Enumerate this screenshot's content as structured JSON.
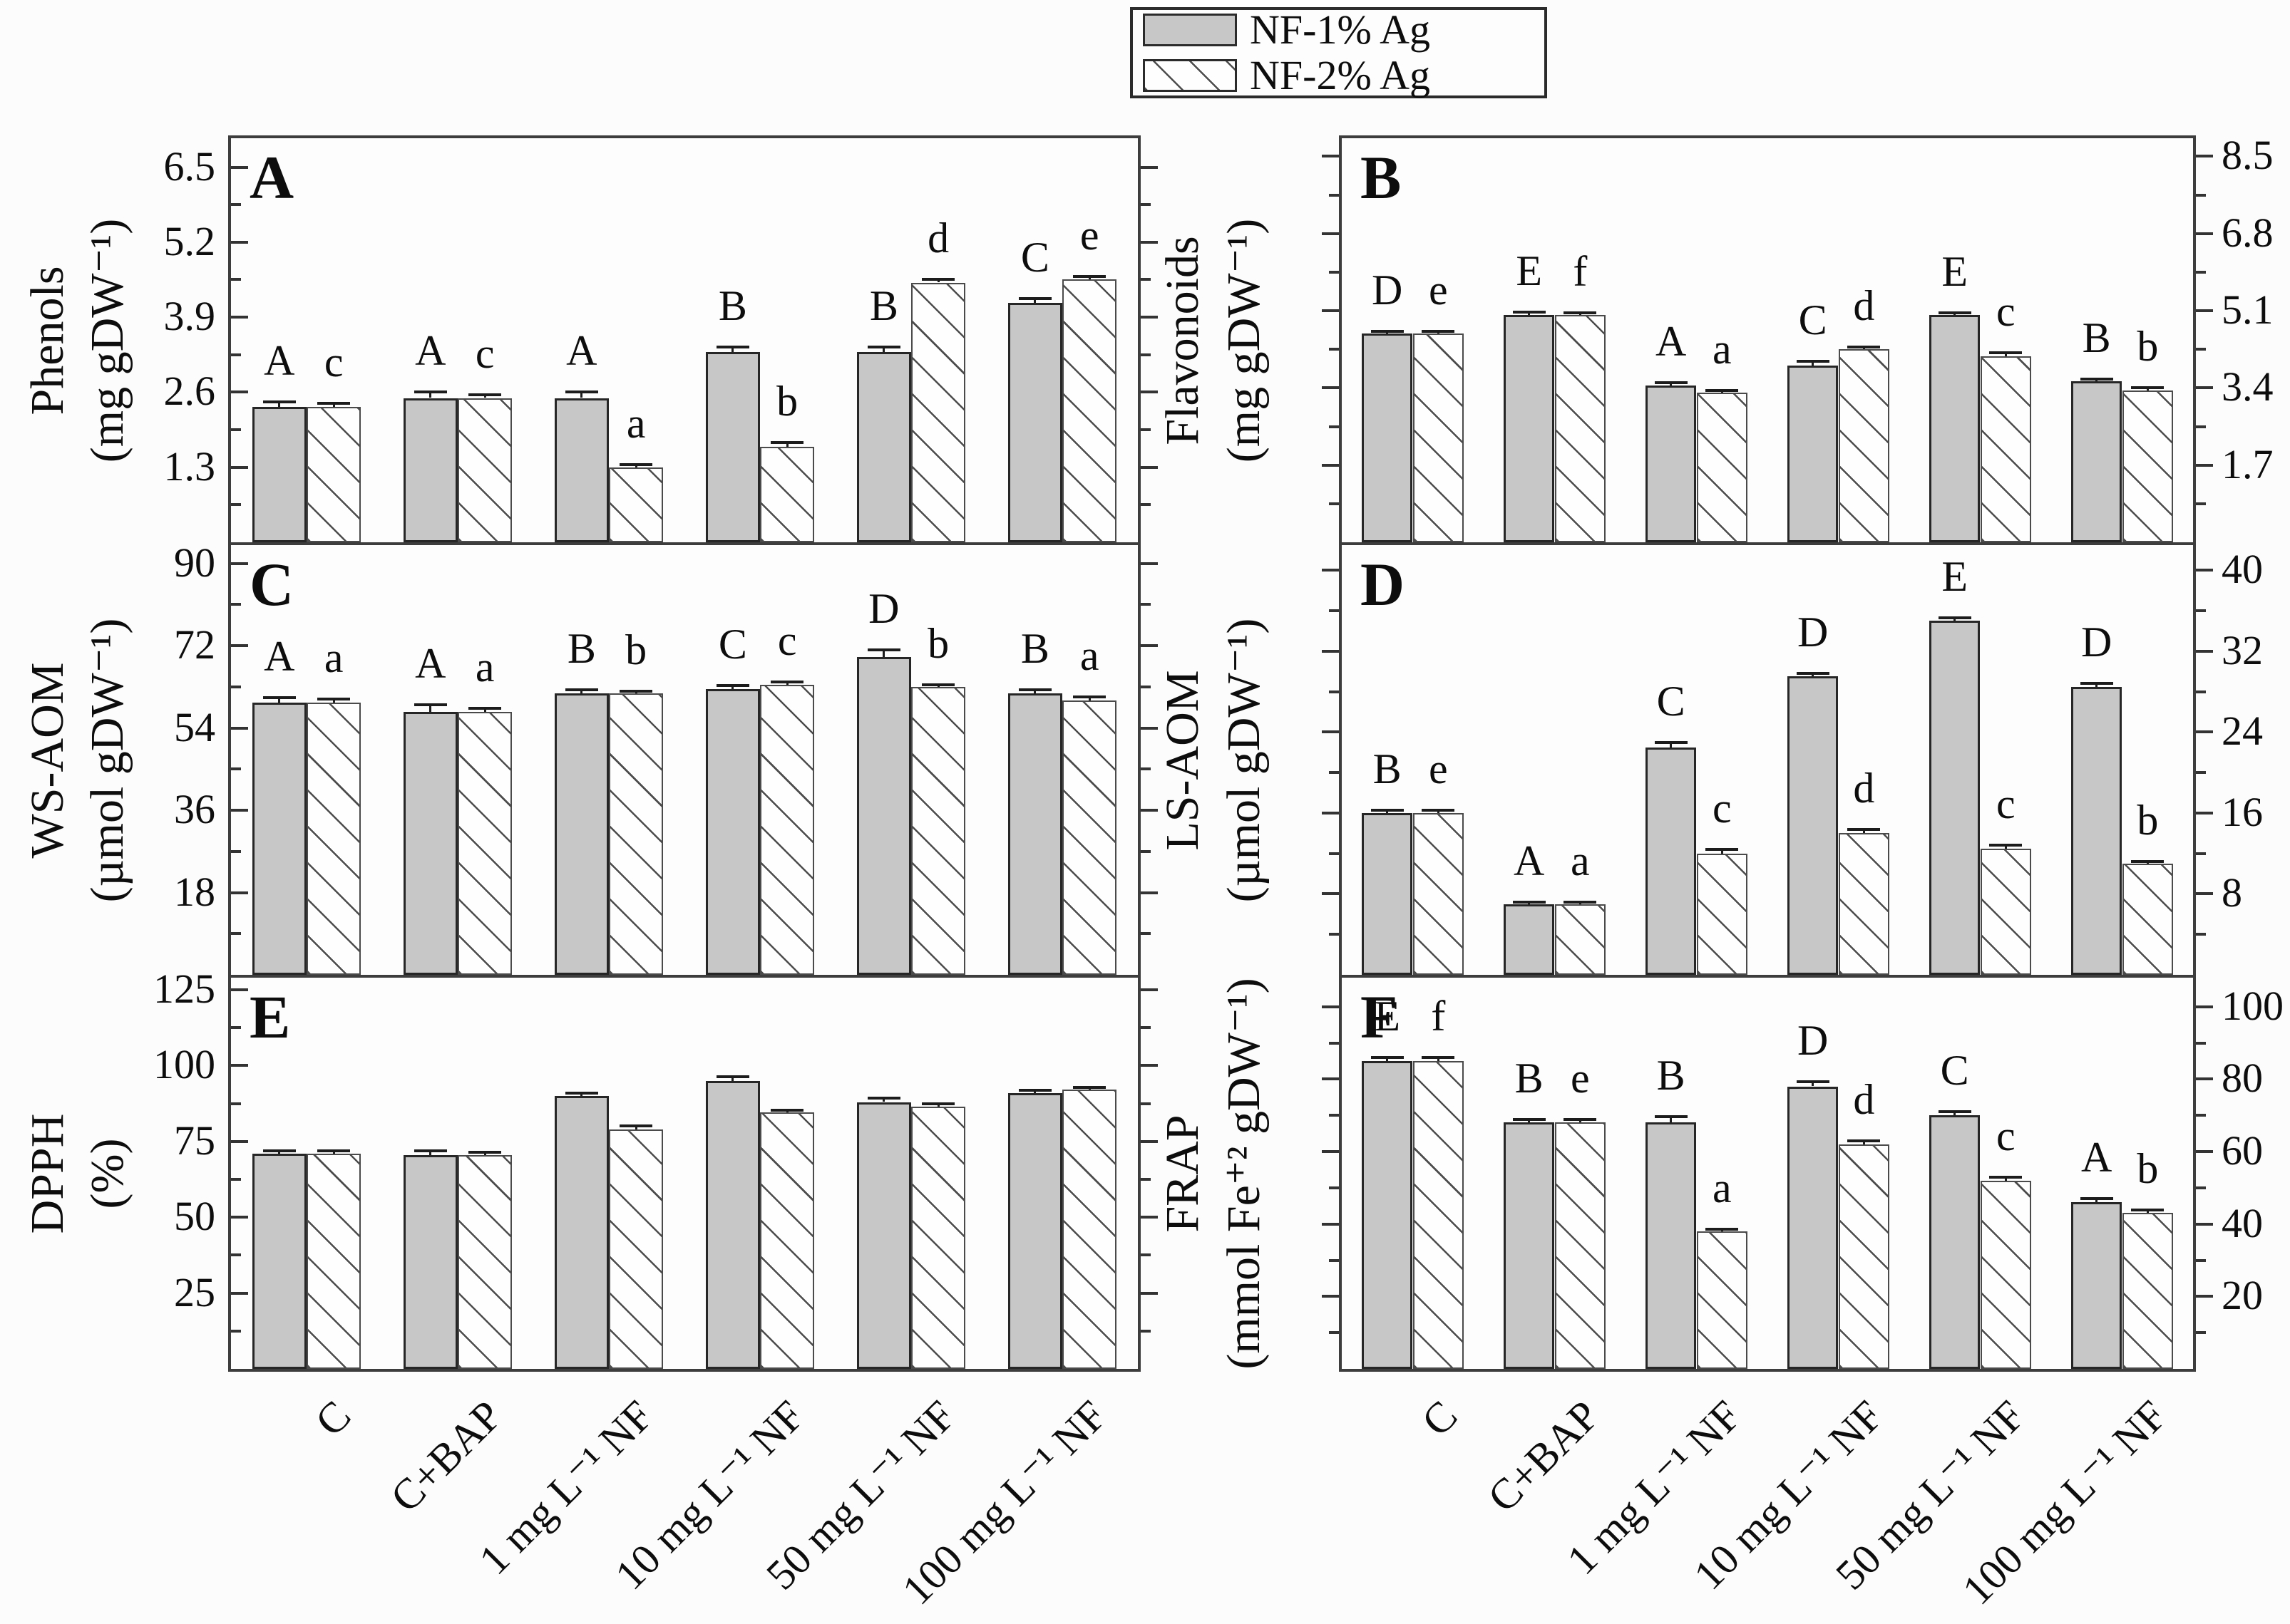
{
  "legend": {
    "items": [
      {
        "label": "NF-1% Ag",
        "swatch": "solid-gray"
      },
      {
        "label": "NF-2% Ag",
        "swatch": "hatched"
      }
    ]
  },
  "colors": {
    "bar_gray": "#c7c7c7",
    "axis_line": "#3d3d3d",
    "text": "#0d0d0d",
    "background": "#fcfcfc"
  },
  "categories": [
    "C",
    "C+BAP",
    "1 mg L⁻¹ NF",
    "10 mg L⁻¹ NF",
    "50 mg L⁻¹ NF",
    "100 mg L⁻¹ NF"
  ],
  "chart_data": [
    {
      "type": "bar",
      "panel": "A",
      "title": "Phenols",
      "ylabel": "Phenols",
      "ylabel_unit": "(mg gDW⁻¹)",
      "axis_side": "left",
      "ylim": [
        0,
        7.0
      ],
      "yticks": [
        1.3,
        2.6,
        3.9,
        5.2,
        6.5
      ],
      "grid": false,
      "series": [
        {
          "name": "NF-1% Ag",
          "values": [
            2.35,
            2.5,
            2.5,
            3.3,
            3.3,
            4.15
          ],
          "errors": [
            0.08,
            0.1,
            0.1,
            0.08,
            0.08,
            0.07
          ],
          "letters": [
            "A",
            "A",
            "A",
            "B",
            "B",
            "C"
          ]
        },
        {
          "name": "NF-2% Ag",
          "values": [
            2.35,
            2.5,
            1.3,
            1.65,
            4.5,
            4.55
          ],
          "errors": [
            0.06,
            0.05,
            0.05,
            0.08,
            0.05,
            0.05
          ],
          "letters": [
            "c",
            "c",
            "a",
            "b",
            "d",
            "e"
          ]
        }
      ]
    },
    {
      "type": "bar",
      "panel": "B",
      "title": "Flavonoids",
      "ylabel": "Flavonoids",
      "ylabel_unit": "(mg gDW⁻¹)",
      "axis_side": "right",
      "ylim": [
        0,
        8.9
      ],
      "yticks": [
        1.7,
        3.4,
        5.1,
        6.8,
        8.5
      ],
      "grid": false,
      "series": [
        {
          "name": "NF-1% Ag",
          "values": [
            4.6,
            5.0,
            3.45,
            3.9,
            5.0,
            3.55
          ],
          "errors": [
            0.05,
            0.07,
            0.06,
            0.08,
            0.06,
            0.05
          ],
          "letters": [
            "D",
            "E",
            "A",
            "C",
            "E",
            "B"
          ]
        },
        {
          "name": "NF-2% Ag",
          "values": [
            4.6,
            5.0,
            3.3,
            4.25,
            4.1,
            3.35
          ],
          "errors": [
            0.04,
            0.05,
            0.05,
            0.05,
            0.07,
            0.05
          ],
          "letters": [
            "e",
            "f",
            "a",
            "d",
            "c",
            "b"
          ]
        }
      ]
    },
    {
      "type": "bar",
      "panel": "C",
      "title": "WS-AOM",
      "ylabel": "WS-AOM",
      "ylabel_unit": "(µmol gDW⁻¹)",
      "axis_side": "left",
      "ylim": [
        0,
        94
      ],
      "yticks": [
        18,
        36,
        54,
        72,
        90
      ],
      "grid": false,
      "series": [
        {
          "name": "NF-1% Ag",
          "values": [
            59.5,
            57.5,
            61.5,
            62.5,
            69.5,
            61.5
          ],
          "errors": [
            1.2,
            1.6,
            0.8,
            0.8,
            1.6,
            0.9
          ],
          "letters": [
            "A",
            "A",
            "B",
            "C",
            "D",
            "B"
          ]
        },
        {
          "name": "NF-2% Ag",
          "values": [
            59.5,
            57.5,
            61.5,
            63.5,
            63.0,
            60.0
          ],
          "errors": [
            0.8,
            0.8,
            0.6,
            0.6,
            0.5,
            0.8
          ],
          "letters": [
            "a",
            "a",
            "b",
            "c",
            "b",
            "a"
          ]
        }
      ]
    },
    {
      "type": "bar",
      "panel": "D",
      "title": "LS-AOM",
      "ylabel": "LS-AOM",
      "ylabel_unit": "(µmol gDW⁻¹)",
      "axis_side": "right",
      "ylim": [
        0,
        42.5
      ],
      "yticks": [
        8,
        16,
        24,
        32,
        40
      ],
      "grid": false,
      "series": [
        {
          "name": "NF-1% Ag",
          "values": [
            16.0,
            7.0,
            22.5,
            29.5,
            35.0,
            28.5
          ],
          "errors": [
            0.3,
            0.2,
            0.5,
            0.3,
            0.3,
            0.3
          ],
          "letters": [
            "B",
            "A",
            "C",
            "D",
            "E",
            "D"
          ]
        },
        {
          "name": "NF-2% Ag",
          "values": [
            16.0,
            7.0,
            12.0,
            14.0,
            12.5,
            11.0
          ],
          "errors": [
            0.3,
            0.2,
            0.4,
            0.4,
            0.3,
            0.2
          ],
          "letters": [
            "e",
            "a",
            "c",
            "d",
            "c",
            "b"
          ]
        }
      ]
    },
    {
      "type": "bar",
      "panel": "E",
      "title": "DPPH",
      "ylabel": "DPPH",
      "ylabel_unit": "(%)",
      "axis_side": "left",
      "ylim": [
        0,
        129
      ],
      "yticks": [
        25,
        50,
        75,
        100,
        125
      ],
      "grid": false,
      "series": [
        {
          "name": "NF-1% Ag",
          "values": [
            71,
            70.5,
            90,
            95,
            88,
            91
          ],
          "errors": [
            0.9,
            1.3,
            0.9,
            1.3,
            1.3,
            0.9
          ],
          "letters": null
        },
        {
          "name": "NF-2% Ag",
          "values": [
            71,
            70.5,
            79,
            84.5,
            86.5,
            92
          ],
          "errors": [
            0.9,
            0.9,
            1.1,
            0.9,
            0.9,
            0.9
          ],
          "letters": null
        }
      ]
    },
    {
      "type": "bar",
      "panel": "F",
      "title": "FRAP",
      "ylabel": "FRAP",
      "ylabel_unit": "(mmol Fe⁺² gDW⁻¹)",
      "axis_side": "right",
      "ylim": [
        0,
        108
      ],
      "yticks": [
        20,
        40,
        60,
        80,
        100
      ],
      "grid": false,
      "series": [
        {
          "name": "NF-1% Ag",
          "values": [
            85,
            68,
            68,
            78,
            70,
            46
          ],
          "errors": [
            0.9,
            0.9,
            1.6,
            1.3,
            1.1,
            1.1
          ],
          "letters": [
            "E",
            "B",
            "B",
            "D",
            "C",
            "A"
          ]
        },
        {
          "name": "NF-2% Ag",
          "values": [
            85,
            68,
            38,
            62,
            52,
            43
          ],
          "errors": [
            0.9,
            0.9,
            0.6,
            0.9,
            0.9,
            0.9
          ],
          "letters": [
            "f",
            "e",
            "a",
            "d",
            "c",
            "b"
          ]
        }
      ]
    }
  ]
}
